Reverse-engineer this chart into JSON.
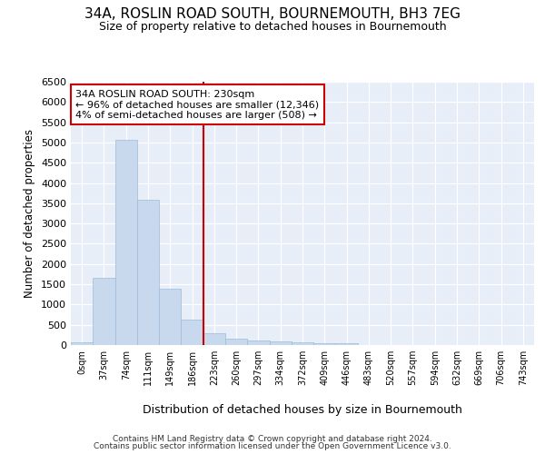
{
  "title": "34A, ROSLIN ROAD SOUTH, BOURNEMOUTH, BH3 7EG",
  "subtitle": "Size of property relative to detached houses in Bournemouth",
  "xlabel": "Distribution of detached houses by size in Bournemouth",
  "ylabel": "Number of detached properties",
  "bar_color": "#c8d9ed",
  "bar_edge_color": "#9bbcd8",
  "background_color": "#e8eef8",
  "grid_color": "#ffffff",
  "categories": [
    "0sqm",
    "37sqm",
    "74sqm",
    "111sqm",
    "149sqm",
    "186sqm",
    "223sqm",
    "260sqm",
    "297sqm",
    "334sqm",
    "372sqm",
    "409sqm",
    "446sqm",
    "483sqm",
    "520sqm",
    "557sqm",
    "594sqm",
    "632sqm",
    "669sqm",
    "706sqm",
    "743sqm"
  ],
  "values": [
    75,
    1650,
    5070,
    3590,
    1400,
    625,
    300,
    150,
    115,
    80,
    60,
    45,
    55,
    5,
    5,
    3,
    3,
    2,
    2,
    2,
    2
  ],
  "ylim": [
    0,
    6500
  ],
  "yticks": [
    0,
    500,
    1000,
    1500,
    2000,
    2500,
    3000,
    3500,
    4000,
    4500,
    5000,
    5500,
    6000,
    6500
  ],
  "vline_index": 6,
  "vline_color": "#cc0000",
  "annotation_text": "34A ROSLIN ROAD SOUTH: 230sqm\n← 96% of detached houses are smaller (12,346)\n4% of semi-detached houses are larger (508) →",
  "annotation_box_color": "#cc0000",
  "footer_line1": "Contains HM Land Registry data © Crown copyright and database right 2024.",
  "footer_line2": "Contains public sector information licensed under the Open Government Licence v3.0."
}
